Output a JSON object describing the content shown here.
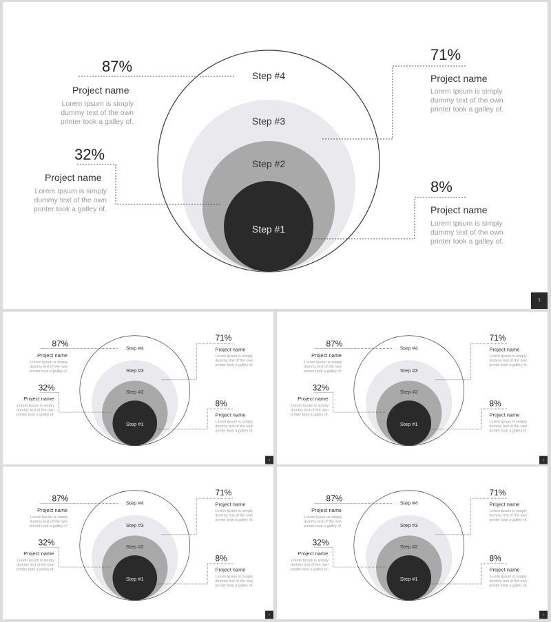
{
  "colors": {
    "outline": "#3a3a3a",
    "step3_fill": "#e9e9ee",
    "step2_fill": "#a9a9a9",
    "step1_fill": "#2a2a2a",
    "leader": "#555555"
  },
  "slide": {
    "steps": [
      "Step #4",
      "Step #3",
      "Step #2",
      "Step #1"
    ],
    "callouts": {
      "top_left": {
        "value": "87%",
        "title": "Project name",
        "text": "Lorem Ipsum is simply dummy text of the own printer took a galley of."
      },
      "mid_left": {
        "value": "32%",
        "title": "Project name",
        "text": "Lorem Ipsum is simply dummy text of the own printer took a galley of."
      },
      "top_right": {
        "value": "71%",
        "title": "Project name",
        "text": "Lorem Ipsum is simply dummy text of the own printer took a galley of."
      },
      "bottom_right": {
        "value": "8%",
        "title": "Project name",
        "text": "Lorem Ipsum is simply dummy text of the own printer took a galley of."
      }
    },
    "page_number": "1"
  }
}
